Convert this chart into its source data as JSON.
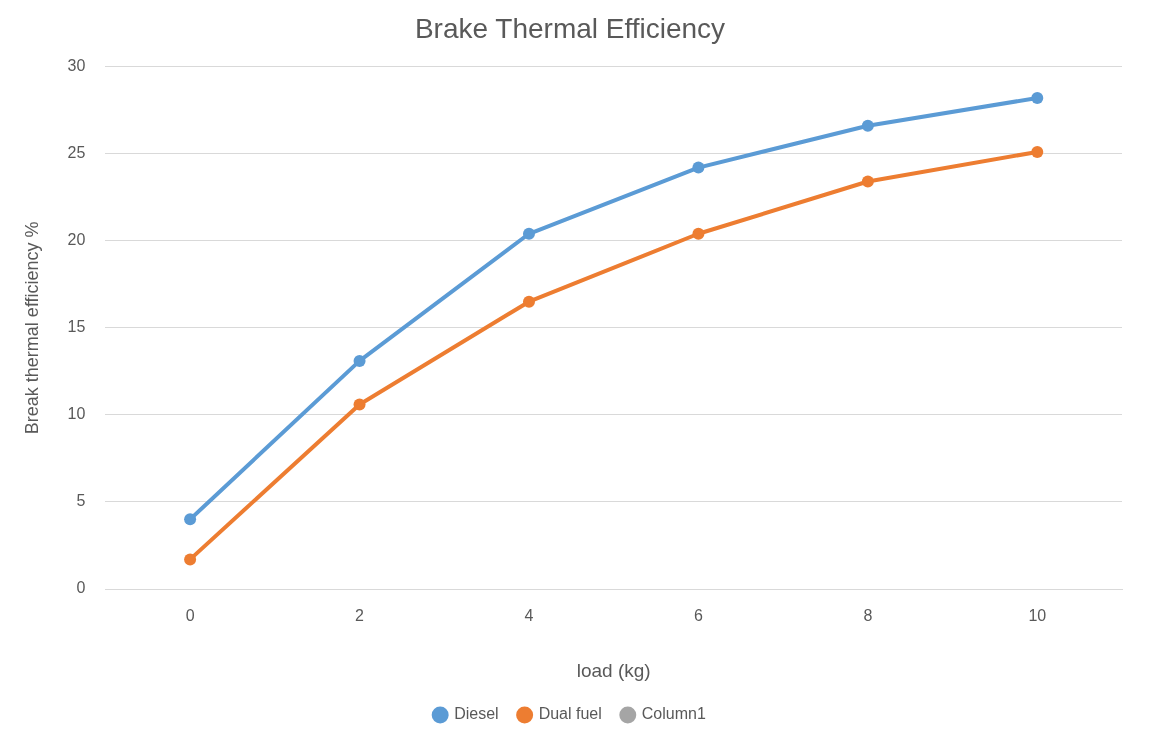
{
  "chart_data": {
    "type": "line",
    "title": "Brake Thermal Efficiency",
    "xlabel": "load (kg)",
    "ylabel": "Break thermal efficiency %",
    "categories": [
      "0",
      "2",
      "4",
      "6",
      "8",
      "10"
    ],
    "series": [
      {
        "name": "Diesel",
        "color": "#5b9bd5",
        "values": [
          4.0,
          13.1,
          20.4,
          24.2,
          26.6,
          28.2
        ]
      },
      {
        "name": "Dual fuel",
        "color": "#ed7d31",
        "values": [
          1.7,
          10.6,
          16.5,
          20.4,
          23.4,
          25.1
        ]
      },
      {
        "name": "Column1",
        "color": "#a5a5a5",
        "values": [
          null,
          null,
          null,
          null,
          null,
          null
        ]
      }
    ],
    "ylim": [
      0,
      30
    ],
    "yticks": [
      0,
      5,
      10,
      15,
      20,
      25,
      30
    ],
    "grid": "y",
    "legend": "bottom",
    "marker": "circle",
    "line_style": "solid"
  }
}
